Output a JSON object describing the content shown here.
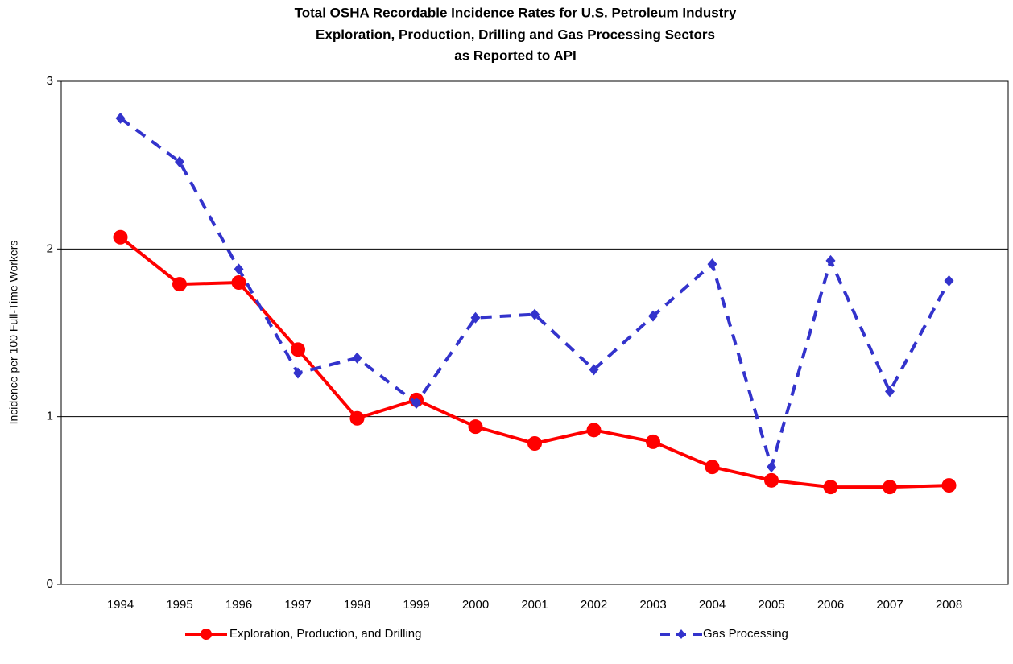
{
  "chart_data": {
    "type": "line",
    "title": [
      "Total OSHA Recordable Incidence Rates for U.S. Petroleum Industry",
      "Exploration, Production, Drilling  and Gas Processing Sectors",
      "as Reported to API"
    ],
    "y_label": "Incidence per 100 Full-Time Workers",
    "categories": [
      "1994",
      "1995",
      "1996",
      "1997",
      "1998",
      "1999",
      "2000",
      "2001",
      "2002",
      "2003",
      "2004",
      "2005",
      "2006",
      "2007",
      "2008"
    ],
    "series": [
      {
        "name": "Exploration, Production, and Drilling",
        "color": "#ff0000",
        "marker": "circle",
        "dash": false,
        "values": [
          2.07,
          1.79,
          1.8,
          1.4,
          0.99,
          1.1,
          0.94,
          0.84,
          0.92,
          0.85,
          0.7,
          0.62,
          0.58,
          0.58,
          0.59
        ]
      },
      {
        "name": "Gas Processing",
        "color": "#3333cc",
        "marker": "diamond",
        "dash": true,
        "values": [
          2.78,
          2.52,
          1.88,
          1.26,
          1.35,
          1.08,
          1.59,
          1.61,
          1.28,
          1.6,
          1.91,
          0.7,
          1.93,
          1.15,
          1.81
        ]
      }
    ],
    "ylim": [
      0,
      3
    ],
    "yticks": [
      0,
      1,
      2,
      3
    ],
    "grid": true
  }
}
